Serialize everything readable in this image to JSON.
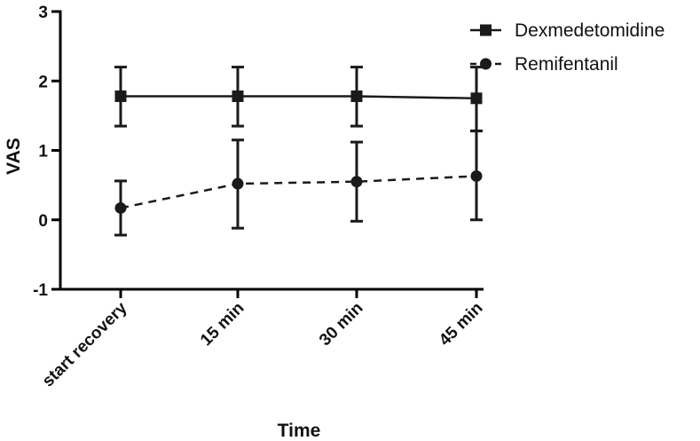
{
  "chart_data": {
    "type": "line",
    "xlabel": "Time",
    "ylabel": "VAS",
    "categories": [
      "start recovery",
      "15 min",
      "30 min",
      "45 min"
    ],
    "ylim": [
      -1,
      3
    ],
    "yticks": [
      "-1",
      "0",
      "1",
      "2",
      "3"
    ],
    "grid": false,
    "legend_position": "top-right",
    "series": [
      {
        "name": "Dexmedetomidine",
        "marker": "square",
        "line_style": "solid",
        "values": [
          1.78,
          1.78,
          1.78,
          1.75
        ],
        "err_low": [
          1.35,
          1.35,
          1.35,
          1.28
        ],
        "err_high": [
          2.2,
          2.2,
          2.2,
          2.2
        ]
      },
      {
        "name": "Remifentanil",
        "marker": "circle",
        "line_style": "dashed",
        "values": [
          0.17,
          0.52,
          0.55,
          0.63
        ],
        "err_low": [
          -0.22,
          -0.12,
          -0.02,
          0.0
        ],
        "err_high": [
          0.56,
          1.15,
          1.12,
          1.28
        ]
      }
    ],
    "colors": {
      "series": "#1a1a1a",
      "axis": "#000000"
    }
  }
}
